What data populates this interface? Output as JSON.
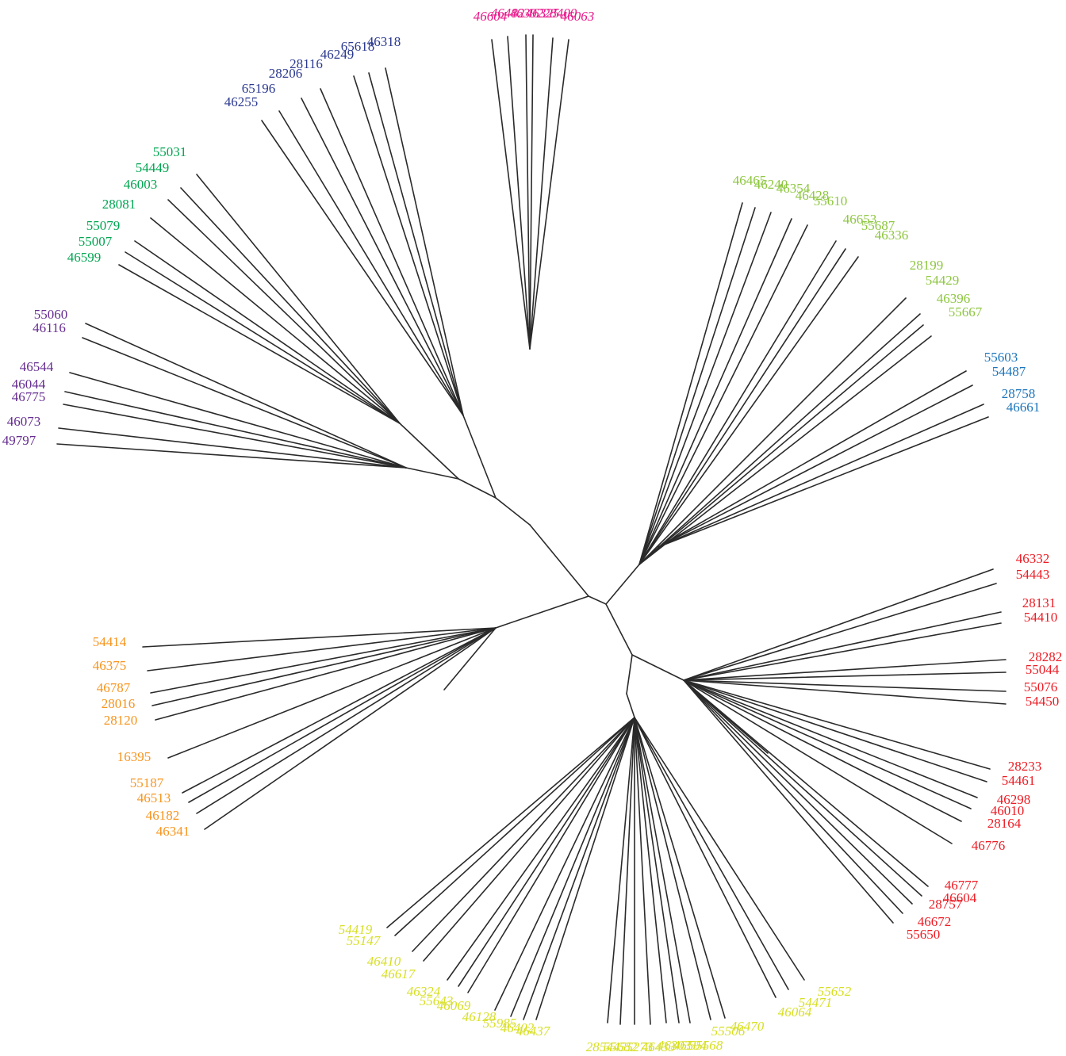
{
  "tree": {
    "type": "unrooted-phylogenetic-tree",
    "clades": [
      {
        "id": "magenta",
        "color": "#e8178a",
        "leaves": [
          "46604",
          "46482",
          "46392",
          "46325",
          "28400",
          "46063"
        ]
      },
      {
        "id": "navy",
        "color": "#2b3990",
        "leaves": [
          "46318",
          "65618",
          "46249",
          "28116",
          "28206",
          "65196",
          "46255"
        ]
      },
      {
        "id": "green",
        "color": "#00a651",
        "leaves": [
          "55031",
          "54449",
          "46003",
          "28081",
          "55079",
          "55007",
          "46599"
        ]
      },
      {
        "id": "purple",
        "color": "#662d91",
        "leaves": [
          "55060",
          "46116",
          "46544",
          "46044",
          "46775",
          "46073",
          "49797"
        ]
      },
      {
        "id": "lime",
        "color": "#8dc63f",
        "leaves": [
          "46465",
          "46240",
          "46354",
          "46428",
          "55610",
          "46653",
          "55687",
          "46336",
          "28199",
          "54429",
          "46396",
          "55667"
        ]
      },
      {
        "id": "blue",
        "color": "#1c75bc",
        "leaves": [
          "55603",
          "54487",
          "28758",
          "46661"
        ]
      },
      {
        "id": "red",
        "color": "#ed1c24",
        "leaves": [
          "46332",
          "54443",
          "28131",
          "54410",
          "28282",
          "55044",
          "55076",
          "54450",
          "28233",
          "54461",
          "46298",
          "46010",
          "28164",
          "46776",
          "46777",
          "46604",
          "28757",
          "46672",
          "55650"
        ]
      },
      {
        "id": "orange",
        "color": "#f7941d",
        "leaves": [
          "54414",
          "46375",
          "46787",
          "28016",
          "28120",
          "16395",
          "55187",
          "46513",
          "46182",
          "46341"
        ]
      },
      {
        "id": "yellow",
        "color": "#d7df23",
        "leaves": [
          "54419",
          "55147",
          "46410",
          "46617",
          "46324",
          "55643",
          "46069",
          "46128",
          "55985",
          "46402",
          "46437",
          "28544",
          "55682",
          "55273",
          "46433",
          "46303",
          "46594",
          "55568",
          "55506",
          "46470",
          "46064",
          "54471",
          "55652"
        ]
      }
    ]
  }
}
